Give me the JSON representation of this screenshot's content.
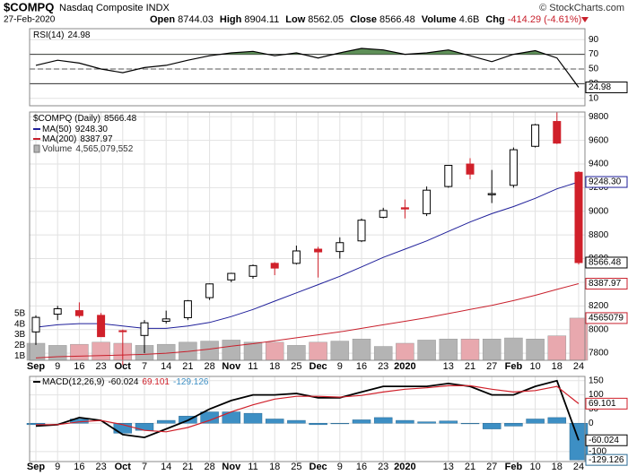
{
  "header": {
    "symbol": "$COMPQ",
    "name": "Nasdaq Composite INDX",
    "date": "27-Feb-2020",
    "source": "© StockCharts.com",
    "stats": [
      {
        "label": "Open",
        "value": "8744.03"
      },
      {
        "label": "High",
        "value": "8904.11"
      },
      {
        "label": "Low",
        "value": "8562.05"
      },
      {
        "label": "Close",
        "value": "8566.48"
      },
      {
        "label": "Volume",
        "value": "4.6B"
      },
      {
        "label": "Chg",
        "value": "-414.29 (-4.61%)"
      }
    ]
  },
  "chart_data": [
    {
      "type": "rsi",
      "name": "RSI(14)",
      "last_label": "24.98",
      "color": "#000000",
      "fill_color": "#5e8f58",
      "values": [
        55,
        62,
        58,
        50,
        45,
        52,
        55,
        62,
        68,
        72,
        74,
        68,
        72,
        65,
        72,
        78,
        76,
        70,
        72,
        76,
        68,
        60,
        70,
        75,
        65,
        24.98
      ],
      "ylim": [
        0,
        100
      ],
      "yticks": [
        10,
        30,
        50,
        70,
        90
      ],
      "levels": [
        30,
        70
      ]
    },
    {
      "type": "candlestick",
      "title": "$COMPQ (Daily)",
      "last_label": "8566.48",
      "up_color": "#000000",
      "down_color": "#d0202a",
      "categories": [
        "Sep",
        "9",
        "16",
        "23",
        "Oct",
        "7",
        "14",
        "21",
        "28",
        "Nov",
        "11",
        "18",
        "25",
        "Dec",
        "9",
        "16",
        "23",
        "2020",
        null,
        "13",
        "21",
        "27",
        "Feb",
        "10",
        "18",
        "24"
      ],
      "open": [
        7980,
        8130,
        8160,
        8120,
        7990,
        7950,
        8070,
        8100,
        8270,
        8420,
        8450,
        8560,
        8560,
        8680,
        8660,
        8750,
        8950,
        9030,
        8980,
        9210,
        9400,
        9140,
        9220,
        9550,
        9760,
        9330
      ],
      "high": [
        8120,
        8200,
        8230,
        8140,
        8000,
        8080,
        8160,
        8250,
        8390,
        8480,
        8550,
        8570,
        8710,
        8700,
        8780,
        8940,
        9030,
        9100,
        9210,
        9390,
        9450,
        9350,
        9540,
        9740,
        9840,
        9340
      ],
      "low": [
        7870,
        8080,
        8100,
        7940,
        7700,
        7800,
        8050,
        8080,
        8250,
        8400,
        8430,
        8460,
        8550,
        8440,
        8600,
        8740,
        8940,
        8940,
        8960,
        9200,
        9270,
        9070,
        9200,
        9540,
        9570,
        8550
      ],
      "close": [
        8103,
        8176,
        8118,
        7940,
        7982,
        8057,
        8090,
        8243,
        8386,
        8475,
        8541,
        8520,
        8665,
        8657,
        8735,
        8925,
        9007,
        9020,
        9179,
        9389,
        9315,
        9150,
        9521,
        9732,
        9577,
        8566.48
      ],
      "ylim": [
        7740,
        9840
      ],
      "yticks": [
        7800,
        8000,
        8200,
        8400,
        8600,
        8800,
        9000,
        9200,
        9400,
        9600,
        9800
      ],
      "overlays": [
        {
          "name": "MA(50)",
          "label": "9248.30",
          "color": "#1f1f9a",
          "values": [
            8020,
            8040,
            8050,
            8050,
            8030,
            8010,
            8010,
            8030,
            8060,
            8110,
            8170,
            8240,
            8310,
            8380,
            8450,
            8530,
            8610,
            8680,
            8750,
            8830,
            8910,
            8980,
            9040,
            9110,
            9190,
            9248.3
          ]
        },
        {
          "name": "MA(200)",
          "label": "8387.97",
          "color": "#c8202c",
          "values": [
            7760,
            7770,
            7775,
            7780,
            7785,
            7790,
            7800,
            7815,
            7835,
            7860,
            7880,
            7905,
            7930,
            7955,
            7980,
            8010,
            8040,
            8070,
            8100,
            8135,
            8170,
            8205,
            8245,
            8290,
            8340,
            8387.97
          ]
        }
      ],
      "volume": {
        "name": "Volume",
        "label": "4,565,079,552",
        "tag": "4565079",
        "up_color": "#b4b4b4",
        "down_color": "#e8a8ae",
        "values": [
          2.2,
          2.0,
          2.1,
          2.3,
          2.2,
          2.0,
          2.1,
          2.3,
          2.4,
          2.5,
          2.3,
          2.3,
          2.0,
          2.3,
          2.4,
          2.6,
          1.9,
          2.2,
          2.5,
          2.6,
          2.6,
          2.6,
          2.7,
          2.6,
          2.9,
          4.565079552
        ],
        "ylim": [
          0.6,
          5.4
        ],
        "yticks": [
          {
            "value": 1,
            "label": "1B"
          },
          {
            "value": 2,
            "label": "2B"
          },
          {
            "value": 3,
            "label": "3B"
          },
          {
            "value": 4,
            "label": "4B"
          },
          {
            "value": 5,
            "label": "5B"
          }
        ]
      }
    },
    {
      "type": "macd",
      "title": "MACD(12,26,9)",
      "categories": [
        "Sep",
        "9",
        "16",
        "23",
        "Oct",
        "7",
        "14",
        "21",
        "28",
        "Nov",
        "11",
        "18",
        "25",
        "Dec",
        "9",
        "16",
        "23",
        "2020",
        null,
        "13",
        "21",
        "27",
        "Feb",
        "10",
        "18",
        "24"
      ],
      "series": [
        {
          "name": "MACD",
          "label": "-60.024",
          "color": "#000000",
          "values": [
            -10,
            -5,
            20,
            10,
            -40,
            -50,
            -20,
            10,
            50,
            80,
            100,
            100,
            105,
            90,
            90,
            110,
            130,
            130,
            130,
            140,
            130,
            100,
            100,
            130,
            150,
            -60.024
          ]
        },
        {
          "name": "Signal",
          "label": "69.101",
          "color": "#d0202a",
          "values": [
            -5,
            -5,
            5,
            10,
            -5,
            -25,
            -30,
            -15,
            10,
            40,
            65,
            85,
            95,
            95,
            92,
            98,
            110,
            120,
            125,
            132,
            132,
            120,
            110,
            115,
            130,
            69.101
          ]
        },
        {
          "name": "Histogram",
          "label": "-129.126",
          "color": "#3d8fc4",
          "values": [
            -5,
            0,
            15,
            0,
            -35,
            -25,
            10,
            25,
            40,
            40,
            35,
            15,
            10,
            -5,
            -2,
            12,
            20,
            10,
            5,
            8,
            -2,
            -20,
            -10,
            15,
            20,
            -129.126
          ]
        }
      ],
      "ylim": [
        -135,
        165
      ],
      "yticks": [
        -100,
        0,
        50,
        100,
        150
      ]
    }
  ]
}
